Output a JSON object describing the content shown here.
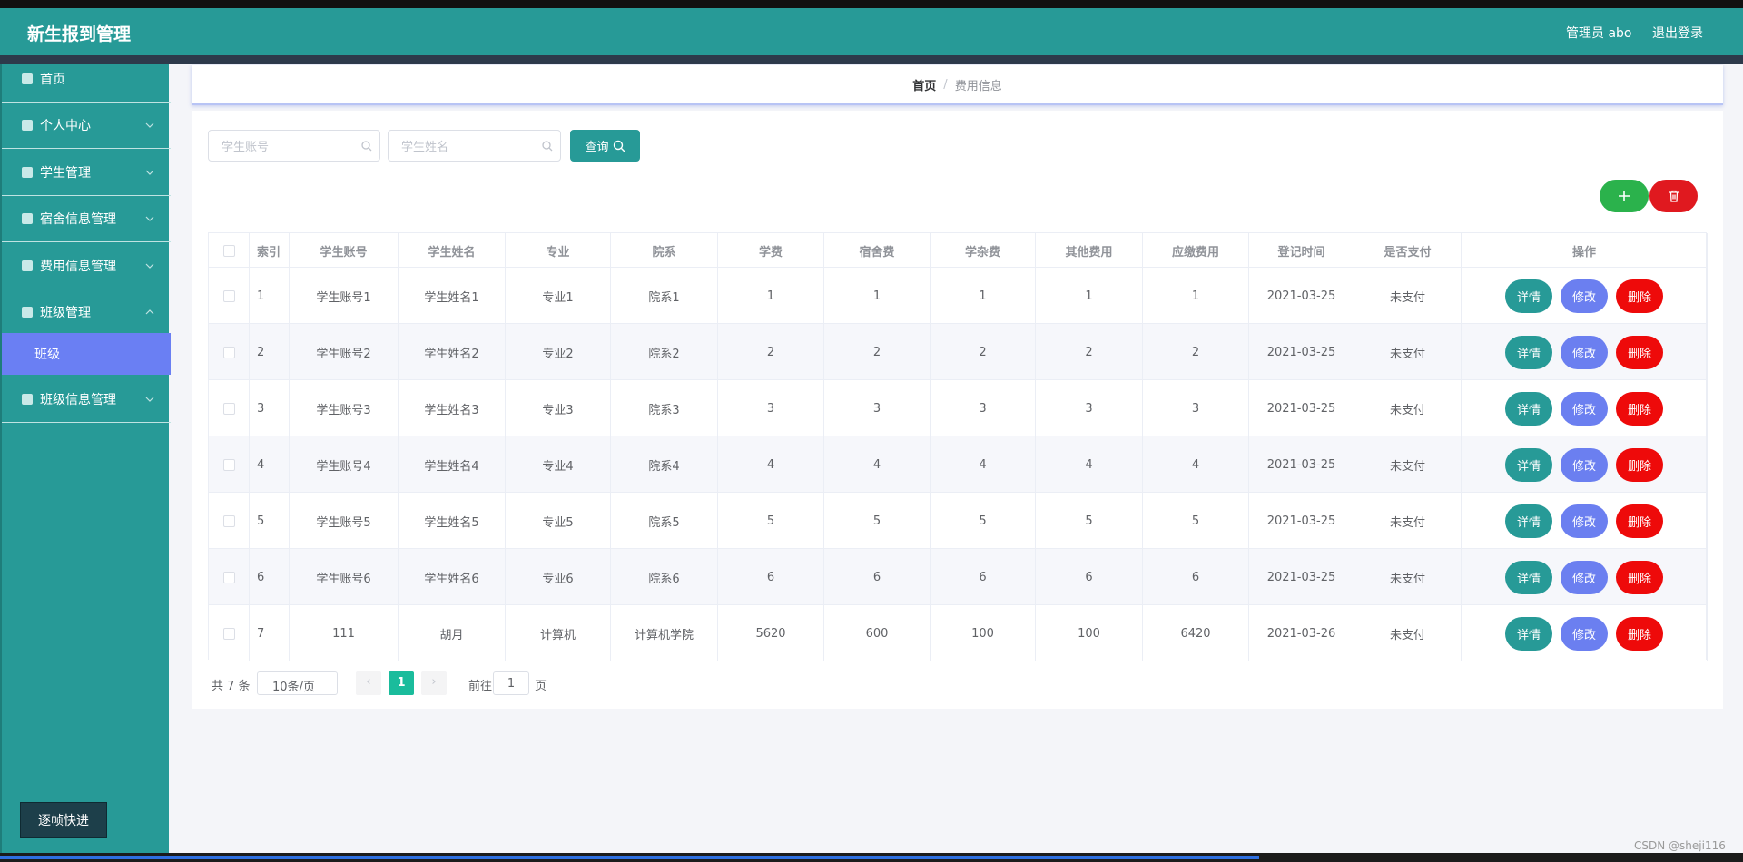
{
  "header": {
    "title": "新生报到管理",
    "user": "管理员 abo",
    "logout": "退出登录"
  },
  "sidebar": {
    "menu": [
      "首页",
      "个人中心",
      "学生管理",
      "宿舍信息管理",
      "费用信息管理",
      "班级管理"
    ],
    "submenu": [
      "班级"
    ],
    "menu_after": [
      "班级信息管理"
    ]
  },
  "breadcrumb": [
    "首页",
    "费用信息"
  ],
  "search": {
    "placeholders": [
      "学生账号",
      "学生姓名"
    ],
    "button": "查询"
  },
  "table": {
    "headers": [
      "索引",
      "学生账号",
      "学生姓名",
      "专业",
      "院系",
      "学费",
      "宿舍费",
      "学杂费",
      "其他费用",
      "应缴费用",
      "登记时间",
      "是否支付",
      "操作"
    ],
    "rows": [
      [
        1,
        "学生账号1",
        "学生姓名1",
        "专业1",
        "院系1",
        1,
        1,
        1,
        1,
        1,
        "2021-03-25",
        "未支付"
      ],
      [
        2,
        "学生账号2",
        "学生姓名2",
        "专业2",
        "院系2",
        2,
        2,
        2,
        2,
        2,
        "2021-03-25",
        "未支付"
      ],
      [
        3,
        "学生账号3",
        "学生姓名3",
        "专业3",
        "院系3",
        3,
        3,
        3,
        3,
        3,
        "2021-03-25",
        "未支付"
      ],
      [
        4,
        "学生账号4",
        "学生姓名4",
        "专业4",
        "院系4",
        4,
        4,
        4,
        4,
        4,
        "2021-03-25",
        "未支付"
      ],
      [
        5,
        "学生账号5",
        "学生姓名5",
        "专业5",
        "院系5",
        5,
        5,
        5,
        5,
        5,
        "2021-03-25",
        "未支付"
      ],
      [
        6,
        "学生账号6",
        "学生姓名6",
        "专业6",
        "院系6",
        6,
        6,
        6,
        6,
        6,
        "2021-03-25",
        "未支付"
      ],
      [
        7,
        "111",
        "胡月",
        "计算机",
        "计算机学院",
        5620,
        600,
        100,
        100,
        6420,
        "2021-03-26",
        "未支付"
      ]
    ],
    "actions": [
      "详情",
      "修改",
      "删除"
    ]
  },
  "pagination": {
    "total": "共 7 条",
    "page_size": "10条/页",
    "current": 1,
    "goto": "前往",
    "goto_value": 1,
    "page_unit": "页"
  },
  "footer_button": "逐帧快进",
  "watermark": "CSDN @sheji116"
}
